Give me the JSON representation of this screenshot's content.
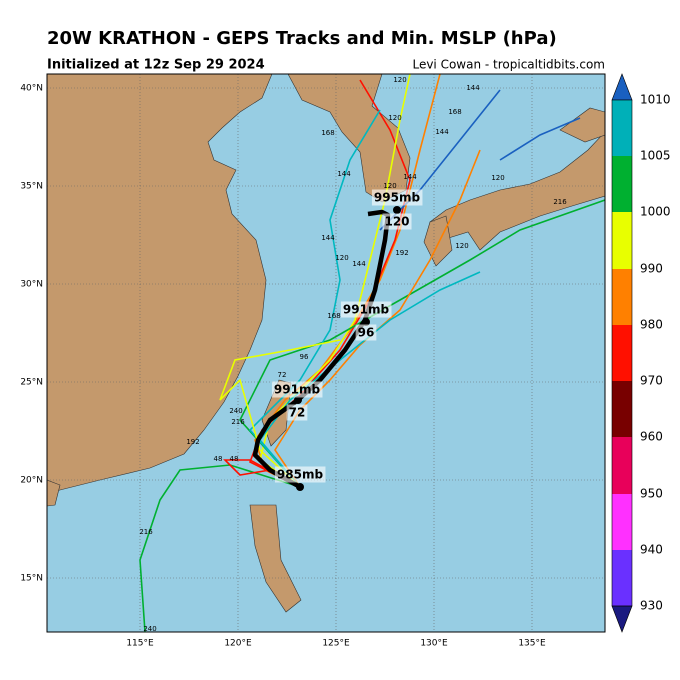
{
  "header": {
    "title": "20W KRATHON - GEPS Tracks and Min. MSLP (hPa)",
    "subtitle": "Initialized at 12z Sep 29 2024",
    "credit": "Levi Cowan - tropicaltidbits.com"
  },
  "map": {
    "lat_labels": [
      "40°N",
      "35°N",
      "30°N",
      "25°N",
      "20°N",
      "15°N"
    ],
    "lon_labels": [
      "115°E",
      "120°E",
      "125°E",
      "130°E",
      "135°E"
    ]
  },
  "colorbar": {
    "levels": [
      1010,
      1005,
      1000,
      990,
      980,
      970,
      960,
      950,
      940,
      930
    ]
  },
  "mean_track": {
    "labels": [
      "995mb",
      "120",
      "991mb",
      "96",
      "991mb",
      "72",
      "985mb"
    ]
  },
  "hour_labels": [
    "120",
    "120",
    "120",
    "168",
    "144",
    "120",
    "168",
    "144",
    "144",
    "144",
    "120",
    "216",
    "144",
    "120",
    "144",
    "168",
    "192",
    "72",
    "96",
    "48",
    "240",
    "216",
    "192",
    "48",
    "216",
    "240"
  ]
}
